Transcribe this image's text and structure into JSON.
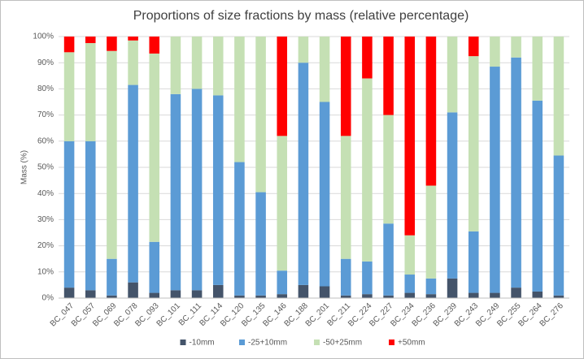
{
  "chart_data": {
    "type": "stacked_bar",
    "title": "Proportions of size fractions by mass (relative percentage)",
    "y_label": "Mass (%)",
    "categories": [
      "BC_047",
      "BC_057",
      "BC_069",
      "BC_078",
      "BC_093",
      "BC_101",
      "BC_111",
      "BC_114",
      "BC_120",
      "BC_135",
      "BC_146",
      "BC_188",
      "BC_201",
      "BC_211",
      "BC_224",
      "BC_227",
      "BC_234",
      "BC_236",
      "BC_239",
      "BC_243",
      "BC_249",
      "BC_255",
      "BC_264",
      "BC_276"
    ],
    "series": [
      {
        "name": "-10mm",
        "color": "#44546a",
        "values": [
          4,
          3,
          1,
          6,
          2,
          3,
          3,
          5,
          1,
          1,
          1.5,
          5,
          4.5,
          1,
          1.5,
          1,
          2,
          1.5,
          7.5,
          2,
          2,
          4,
          2.5,
          1
        ]
      },
      {
        "name": "-25+10mm",
        "color": "#5b9bd5",
        "values": [
          56,
          57,
          14,
          75.5,
          19.5,
          75,
          77,
          72.5,
          51,
          39.5,
          9,
          85,
          70.5,
          14,
          12.5,
          27.5,
          7,
          6,
          63.5,
          23.5,
          86.5,
          88,
          73,
          53.5
        ]
      },
      {
        "name": "-50+25mm",
        "color": "#c5e0b4",
        "values": [
          34,
          37.5,
          79.5,
          17,
          72,
          22,
          20,
          22.5,
          48,
          59.5,
          51.5,
          10,
          25,
          47,
          70,
          41.5,
          15,
          35.5,
          29,
          67,
          11.5,
          8,
          24.5,
          45.5
        ]
      },
      {
        "name": "+50mm",
        "color": "#ff0000",
        "values": [
          6,
          2.5,
          5.5,
          1.5,
          6.5,
          0,
          0,
          0,
          0,
          0,
          38,
          0,
          0,
          38,
          16,
          30,
          76,
          57,
          0,
          7.5,
          0,
          0,
          0,
          0
        ]
      }
    ],
    "ylim": [
      0,
      100
    ],
    "yticks": [
      {
        "value": 0,
        "label": "0%"
      },
      {
        "value": 10,
        "label": "10%"
      },
      {
        "value": 20,
        "label": "20%"
      },
      {
        "value": 30,
        "label": "30%"
      },
      {
        "value": 40,
        "label": "40%"
      },
      {
        "value": 50,
        "label": "50%"
      },
      {
        "value": 60,
        "label": "60%"
      },
      {
        "value": 70,
        "label": "70%"
      },
      {
        "value": 80,
        "label": "80%"
      },
      {
        "value": 90,
        "label": "90%"
      },
      {
        "value": 100,
        "label": "100%"
      }
    ],
    "grid": true,
    "legend": "bottom"
  }
}
